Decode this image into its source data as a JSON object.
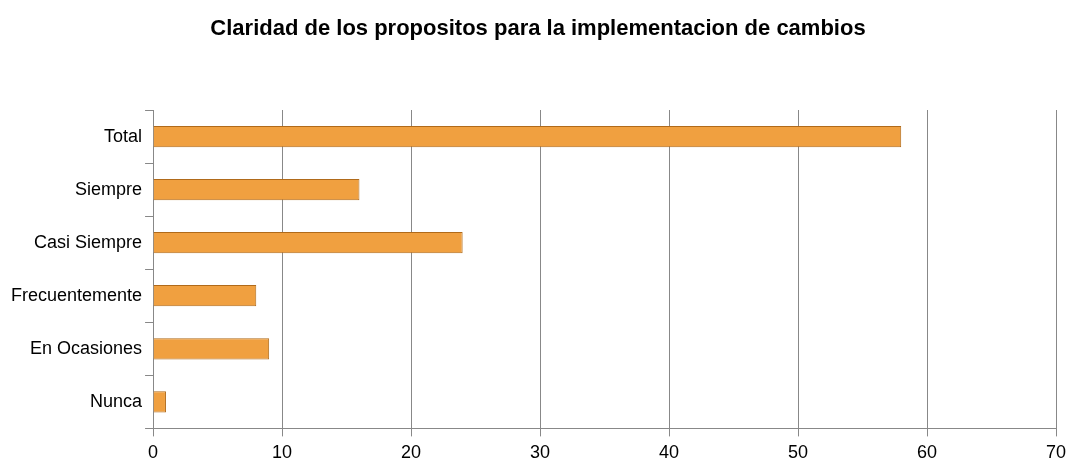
{
  "chart_data": {
    "type": "bar",
    "orientation": "horizontal",
    "title": "Claridad de los propositos para la implementacion de cambios",
    "categories": [
      "Total",
      "Siempre",
      "Casi Siempre",
      "Frecuentemente",
      "En Ocasiones",
      "Nunca"
    ],
    "values": [
      58,
      16,
      24,
      8,
      9,
      1
    ],
    "color": "#f0a040",
    "xlim": [
      0,
      70
    ],
    "xticks": [
      0,
      10,
      20,
      30,
      40,
      50,
      60,
      70
    ],
    "grid": "x",
    "legend": false
  }
}
